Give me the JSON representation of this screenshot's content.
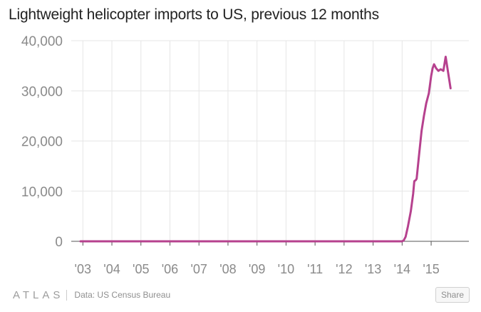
{
  "title": "Lightweight helicopter imports to US, previous 12 months",
  "footer": {
    "logo": "ATLAS",
    "source": "Data: US Census Bureau",
    "share_label": "Share"
  },
  "colors": {
    "line": "#b6418e",
    "grid": "#e6e6e6",
    "axis_text": "#8a8a8a",
    "baseline": "#555555"
  },
  "chart_data": {
    "type": "line",
    "title": "Lightweight helicopter imports to US, previous 12 months",
    "xlabel": "",
    "ylabel": "",
    "ylim": [
      0,
      40000
    ],
    "yticks": [
      0,
      10000,
      20000,
      30000,
      40000
    ],
    "ytick_labels": [
      "0",
      "10,000",
      "20,000",
      "30,000",
      "40,000"
    ],
    "xlim": [
      2002.6,
      2016.3
    ],
    "xticks": [
      2003,
      2004,
      2005,
      2006,
      2007,
      2008,
      2009,
      2010,
      2011,
      2012,
      2013,
      2014,
      2015
    ],
    "xtick_labels": [
      "'03",
      "'04",
      "'05",
      "'06",
      "'07",
      "'08",
      "'09",
      "'10",
      "'11",
      "'12",
      "'13",
      "'14",
      "'15"
    ],
    "grid": true,
    "series": [
      {
        "name": "Lightweight helicopter imports",
        "x": [
          2002.92,
          2005.0,
          2008.0,
          2010.0,
          2012.0,
          2013.5,
          2014.0,
          2014.05,
          2014.12,
          2014.2,
          2014.3,
          2014.38,
          2014.42,
          2014.47,
          2014.5,
          2014.58,
          2014.67,
          2014.75,
          2014.83,
          2014.92,
          2015.0,
          2015.05,
          2015.1,
          2015.17,
          2015.25,
          2015.33,
          2015.42,
          2015.5,
          2015.58,
          2015.67
        ],
        "values": [
          0,
          0,
          0,
          0,
          0,
          0,
          0,
          150,
          900,
          3000,
          6000,
          9500,
          12000,
          12200,
          12500,
          17000,
          22000,
          25000,
          27500,
          29500,
          33000,
          34500,
          35300,
          34500,
          34000,
          34300,
          34000,
          36800,
          33800,
          30500
        ]
      }
    ]
  }
}
